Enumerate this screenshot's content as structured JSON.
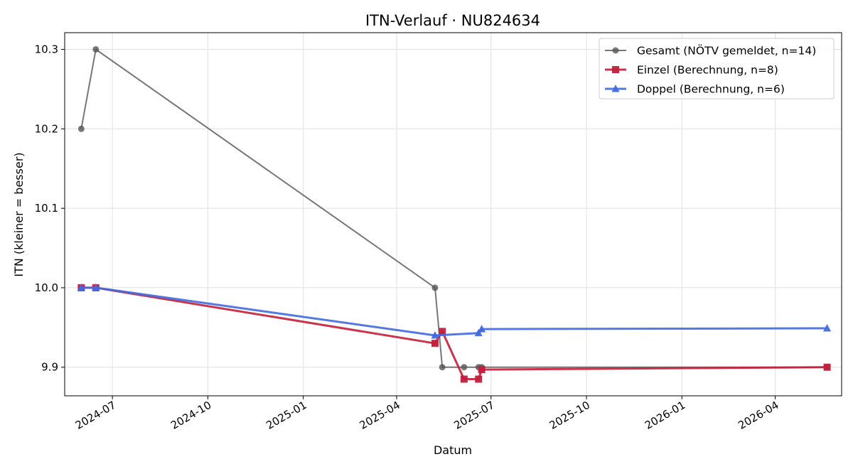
{
  "chart_data": {
    "type": "line",
    "title": "ITN-Verlauf · NU824634",
    "xlabel": "Datum",
    "ylabel": "ITN  (kleiner = besser)",
    "x_axis_type": "date",
    "xlim": [
      "2024-05-16",
      "2026-06-04"
    ],
    "ylim": [
      9.864,
      10.321
    ],
    "x_ticks": [
      "2024-07-01",
      "2024-10-01",
      "2025-01-01",
      "2025-04-01",
      "2025-07-01",
      "2025-10-01",
      "2026-01-01",
      "2026-04-01"
    ],
    "x_tick_labels": [
      "2024-07",
      "2024-10",
      "2025-01",
      "2025-04",
      "2025-07",
      "2025-10",
      "2026-01",
      "2026-04"
    ],
    "y_ticks": [
      9.9,
      10.0,
      10.1,
      10.2,
      10.3
    ],
    "y_tick_labels": [
      "9.9",
      "10.0",
      "10.1",
      "10.2",
      "10.3"
    ],
    "grid": true,
    "legend_position": "top-right",
    "series": [
      {
        "name": "Gesamt (NÖTV gemeldet, n=14)",
        "color": "#555555",
        "marker": "circle",
        "points": [
          {
            "x": "2024-06-01",
            "y": 10.2
          },
          {
            "x": "2024-06-15",
            "y": 10.3
          },
          {
            "x": "2025-05-08",
            "y": 10.0
          },
          {
            "x": "2025-05-15",
            "y": 9.9
          },
          {
            "x": "2025-06-05",
            "y": 9.9
          },
          {
            "x": "2025-06-19",
            "y": 9.9
          },
          {
            "x": "2025-06-22",
            "y": 9.9
          },
          {
            "x": "2026-05-21",
            "y": 9.9
          }
        ]
      },
      {
        "name": "Einzel (Berechnung, n=8)",
        "color": "#c41e3a",
        "marker": "square",
        "points": [
          {
            "x": "2024-06-01",
            "y": 10.0
          },
          {
            "x": "2024-06-15",
            "y": 10.0
          },
          {
            "x": "2025-05-08",
            "y": 9.93
          },
          {
            "x": "2025-05-15",
            "y": 9.945
          },
          {
            "x": "2025-06-05",
            "y": 9.885
          },
          {
            "x": "2025-06-19",
            "y": 9.885
          },
          {
            "x": "2025-06-22",
            "y": 9.897
          },
          {
            "x": "2026-05-21",
            "y": 9.9
          }
        ]
      },
      {
        "name": "Doppel (Berechnung, n=6)",
        "color": "#4169e1",
        "marker": "triangle",
        "points": [
          {
            "x": "2024-06-01",
            "y": 10.0
          },
          {
            "x": "2024-06-15",
            "y": 10.0
          },
          {
            "x": "2025-05-08",
            "y": 9.94
          },
          {
            "x": "2025-06-19",
            "y": 9.943
          },
          {
            "x": "2025-06-22",
            "y": 9.948
          },
          {
            "x": "2026-05-21",
            "y": 9.949
          }
        ]
      }
    ]
  }
}
